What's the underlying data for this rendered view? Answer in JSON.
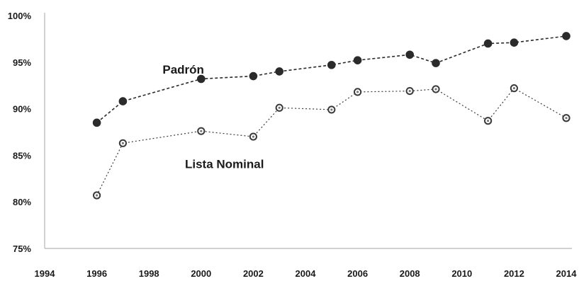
{
  "chart_data": {
    "type": "line",
    "title": "",
    "xlabel": "",
    "ylabel": "",
    "xlim": [
      1994,
      2014
    ],
    "ylim": [
      75,
      100
    ],
    "x_ticks": [
      1994,
      1996,
      1998,
      2000,
      2002,
      2004,
      2006,
      2008,
      2010,
      2012,
      2014
    ],
    "y_ticks": [
      75,
      80,
      85,
      90,
      95,
      100
    ],
    "y_tick_labels": [
      "75%",
      "80%",
      "85%",
      "90%",
      "95%",
      "100%"
    ],
    "grid": false,
    "legend": "none (series labelled directly on the chart)",
    "series": [
      {
        "name": "Padrón",
        "marker": "filled circle",
        "line": "dashed",
        "color": "#2b2b2b",
        "x": [
          1996,
          1997,
          2000,
          2002,
          2003,
          2005,
          2006,
          2008,
          2009,
          2011,
          2012,
          2014
        ],
        "y": [
          88.5,
          90.8,
          93.2,
          93.5,
          94.0,
          94.7,
          95.2,
          95.8,
          94.9,
          97.0,
          97.1,
          97.8
        ]
      },
      {
        "name": "Lista Nominal",
        "marker": "hollow circle",
        "line": "dotted",
        "color": "#3a3a3a",
        "x": [
          1996,
          1997,
          2000,
          2002,
          2003,
          2005,
          2006,
          2008,
          2009,
          2011,
          2012,
          2014
        ],
        "y": [
          80.7,
          86.3,
          87.6,
          87.0,
          90.1,
          89.9,
          91.8,
          91.9,
          92.1,
          88.7,
          92.2,
          89.0
        ]
      }
    ]
  }
}
